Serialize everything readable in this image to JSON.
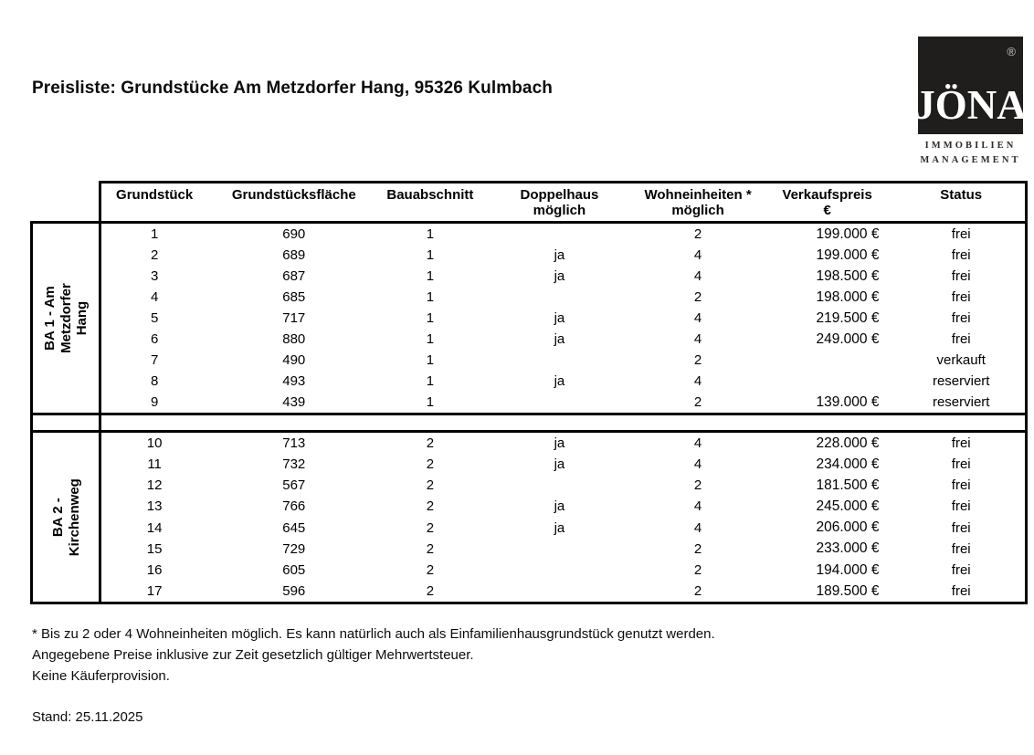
{
  "page": {
    "title": "Preisliste: Grundstücke Am Metzdorfer Hang, 95326 Kulmbach",
    "stand": "Stand: 25.11.2025"
  },
  "logo": {
    "wordmark": "JÖNA",
    "registered_mark": "®",
    "subtitle_line1": "IMMOBILIEN",
    "subtitle_line2": "MANAGEMENT",
    "box_color": "#201d1d",
    "text_color": "#ffffff"
  },
  "table": {
    "headers": [
      {
        "line1": "Grundstück",
        "line2": ""
      },
      {
        "line1": "Grundstücksfläche",
        "line2": ""
      },
      {
        "line1": "Bauabschnitt",
        "line2": ""
      },
      {
        "line1": "Doppelhaus",
        "line2": "möglich"
      },
      {
        "line1": "Wohneinheiten *",
        "line2": "möglich"
      },
      {
        "line1": "Verkaufspreis",
        "line2": "€"
      },
      {
        "line1": "Status",
        "line2": ""
      }
    ],
    "sections": [
      {
        "label": "BA 1  - Am Metzdorfer\nHang",
        "rows": [
          [
            "1",
            "690",
            "1",
            "",
            "2",
            "199.000 €",
            "frei"
          ],
          [
            "2",
            "689",
            "1",
            "ja",
            "4",
            "199.000 €",
            "frei"
          ],
          [
            "3",
            "687",
            "1",
            "ja",
            "4",
            "198.500 €",
            "frei"
          ],
          [
            "4",
            "685",
            "1",
            "",
            "2",
            "198.000 €",
            "frei"
          ],
          [
            "5",
            "717",
            "1",
            "ja",
            "4",
            "219.500 €",
            "frei"
          ],
          [
            "6",
            "880",
            "1",
            "ja",
            "4",
            "249.000 €",
            "frei"
          ],
          [
            "7",
            "490",
            "1",
            "",
            "2",
            "",
            "verkauft"
          ],
          [
            "8",
            "493",
            "1",
            "ja",
            "4",
            "",
            "reserviert"
          ],
          [
            "9",
            "439",
            "1",
            "",
            "2",
            "139.000 €",
            "reserviert"
          ]
        ]
      },
      {
        "label": "BA 2 - Kirchenweg",
        "rows": [
          [
            "10",
            "713",
            "2",
            "ja",
            "4",
            "228.000 €",
            "frei"
          ],
          [
            "11",
            "732",
            "2",
            "ja",
            "4",
            "234.000 €",
            "frei"
          ],
          [
            "12",
            "567",
            "2",
            "",
            "2",
            "181.500 €",
            "frei"
          ],
          [
            "13",
            "766",
            "2",
            "ja",
            "4",
            "245.000 €",
            "frei"
          ],
          [
            "14",
            "645",
            "2",
            "ja",
            "4",
            "206.000 €",
            "frei"
          ],
          [
            "15",
            "729",
            "2",
            "",
            "2",
            "233.000 €",
            "frei"
          ],
          [
            "16",
            "605",
            "2",
            "",
            "2",
            "194.000 €",
            "frei"
          ],
          [
            "17",
            "596",
            "2",
            "",
            "2",
            "189.500 €",
            "frei"
          ]
        ]
      }
    ]
  },
  "footnotes": [
    "* Bis zu 2 oder 4 Wohneinheiten möglich. Es kann natürlich auch als Einfamilienhausgrundstück genutzt werden.",
    "Angegebene Preise inklusive zur Zeit gesetzlich gültiger Mehrwertsteuer.",
    "Keine Käuferprovision."
  ]
}
